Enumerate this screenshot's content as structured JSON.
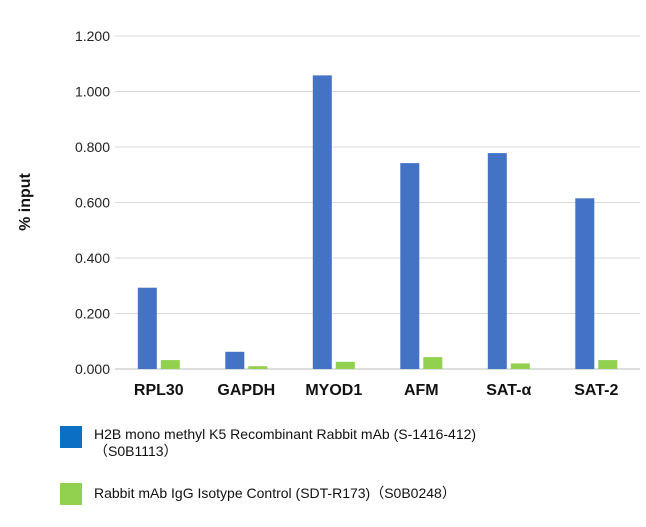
{
  "chart_data": {
    "type": "bar",
    "title": "",
    "xlabel": "",
    "ylabel": "% input",
    "categories": [
      "RPL30",
      "GAPDH",
      "MYOD1",
      "AFM",
      "SAT-α",
      "SAT-2"
    ],
    "ylim": [
      0,
      1.2
    ],
    "yticks": [
      "0.000",
      "0.200",
      "0.400",
      "0.600",
      "0.800",
      "1.000",
      "1.200"
    ],
    "ytick_values": [
      0,
      0.2,
      0.4,
      0.6,
      0.8,
      1.0,
      1.2
    ],
    "grid": true,
    "legend_position": "bottom",
    "series": [
      {
        "name": "H2B mono methyl K5 Recombinant Rabbit mAb (S-1416-412)\n（S0B1113）",
        "color": "#4472C4",
        "values": [
          0.293,
          0.062,
          1.058,
          0.742,
          0.778,
          0.615
        ]
      },
      {
        "name": "Rabbit mAb IgG Isotype Control (SDT-R173)（S0B0248）",
        "color": "#92D050",
        "values": [
          0.032,
          0.01,
          0.026,
          0.043,
          0.02,
          0.032
        ]
      }
    ]
  },
  "legend": {
    "items": [
      {
        "line1": "H2B mono methyl K5 Recombinant Rabbit mAb (S-1416-412)",
        "line2": "（S0B1113）",
        "color": "#0B6FC2"
      },
      {
        "line1": "Rabbit mAb IgG Isotype Control (SDT-R173)（S0B0248）",
        "line2": "",
        "color": "#92D050"
      }
    ]
  }
}
